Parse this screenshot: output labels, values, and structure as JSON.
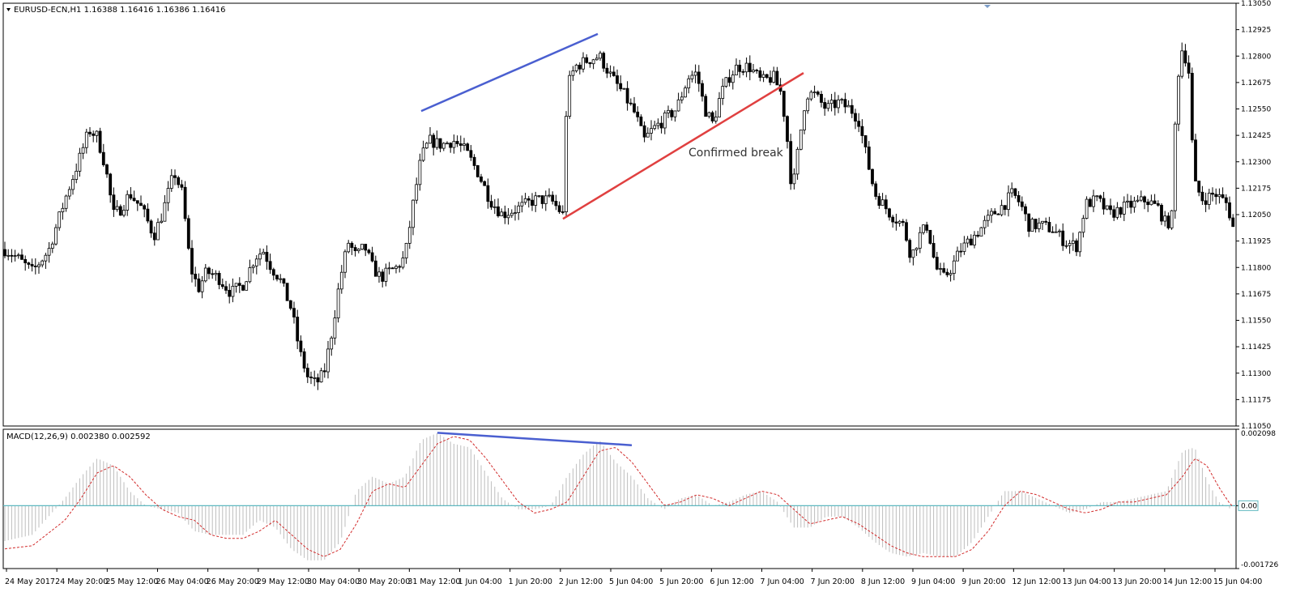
{
  "window": {
    "symbol_title": "EURUSD-ECN,H1  1.16388 1.16416 1.16386 1.16416",
    "macd_title": "MACD(12,26,9) 0.002380 0.002592"
  },
  "colors": {
    "candle": "#000000",
    "axis": "#000000",
    "grid_zero": "#5fb8c0",
    "macd_hist": "#bdbdbd",
    "macd_signal": "#d22b2b",
    "trend_blue": "#4a5fd0",
    "trend_red": "#e04040",
    "zero_box": "#5fb8c0"
  },
  "annotations": {
    "confirmed_break": "Confirmed break"
  },
  "chart_data": [
    {
      "type": "candlestick",
      "title": "EURUSD-ECN,H1",
      "ylim": [
        1.1105,
        1.1305
      ],
      "y_ticks": [
        "1.13050",
        "1.12925",
        "1.12800",
        "1.12675",
        "1.12550",
        "1.12425",
        "1.12300",
        "1.12175",
        "1.12050",
        "1.11925",
        "1.11800",
        "1.11675",
        "1.11550",
        "1.11425",
        "1.11300",
        "1.11175",
        "1.11050"
      ],
      "close_path": [
        [
          0,
          1.119
        ],
        [
          20,
          1.1185
        ],
        [
          40,
          1.1178
        ],
        [
          60,
          1.1188
        ],
        [
          80,
          1.1212
        ],
        [
          95,
          1.1228
        ],
        [
          110,
          1.1245
        ],
        [
          120,
          1.1242
        ],
        [
          130,
          1.1228
        ],
        [
          140,
          1.1205
        ],
        [
          150,
          1.1208
        ],
        [
          160,
          1.1215
        ],
        [
          175,
          1.1208
        ],
        [
          190,
          1.1195
        ],
        [
          200,
          1.1205
        ],
        [
          215,
          1.1225
        ],
        [
          225,
          1.1215
        ],
        [
          235,
          1.118
        ],
        [
          245,
          1.117
        ],
        [
          255,
          1.1178
        ],
        [
          270,
          1.1175
        ],
        [
          285,
          1.1168
        ],
        [
          300,
          1.1172
        ],
        [
          315,
          1.1185
        ],
        [
          325,
          1.1188
        ],
        [
          335,
          1.118
        ],
        [
          345,
          1.1175
        ],
        [
          360,
          1.116
        ],
        [
          370,
          1.114
        ],
        [
          380,
          1.1128
        ],
        [
          390,
          1.1125
        ],
        [
          400,
          1.113
        ],
        [
          410,
          1.115
        ],
        [
          420,
          1.1175
        ],
        [
          430,
          1.1192
        ],
        [
          440,
          1.1185
        ],
        [
          450,
          1.119
        ],
        [
          460,
          1.118
        ],
        [
          470,
          1.1175
        ],
        [
          480,
          1.1178
        ],
        [
          490,
          1.118
        ],
        [
          500,
          1.1185
        ],
        [
          510,
          1.121
        ],
        [
          520,
          1.1232
        ],
        [
          530,
          1.124
        ],
        [
          545,
          1.1238
        ],
        [
          560,
          1.124
        ],
        [
          575,
          1.1235
        ],
        [
          590,
          1.1225
        ],
        [
          605,
          1.1212
        ],
        [
          620,
          1.1205
        ],
        [
          640,
          1.1208
        ],
        [
          660,
          1.1212
        ],
        [
          680,
          1.1212
        ],
        [
          695,
          1.1205
        ],
        [
          700,
          1.1265
        ],
        [
          710,
          1.1275
        ],
        [
          725,
          1.1278
        ],
        [
          740,
          1.128
        ],
        [
          755,
          1.127
        ],
        [
          770,
          1.1262
        ],
        [
          785,
          1.1252
        ],
        [
          795,
          1.124
        ],
        [
          805,
          1.1245
        ],
        [
          820,
          1.125
        ],
        [
          835,
          1.1255
        ],
        [
          850,
          1.127
        ],
        [
          860,
          1.1272
        ],
        [
          870,
          1.1255
        ],
        [
          880,
          1.1248
        ],
        [
          890,
          1.1262
        ],
        [
          900,
          1.127
        ],
        [
          910,
          1.1275
        ],
        [
          925,
          1.1275
        ],
        [
          940,
          1.1268
        ],
        [
          955,
          1.127
        ],
        [
          965,
          1.1262
        ],
        [
          972,
          1.124
        ],
        [
          978,
          1.1215
        ],
        [
          985,
          1.1235
        ],
        [
          995,
          1.1262
        ],
        [
          1005,
          1.1262
        ],
        [
          1020,
          1.1255
        ],
        [
          1035,
          1.1258
        ],
        [
          1050,
          1.1255
        ],
        [
          1060,
          1.125
        ],
        [
          1070,
          1.1232
        ],
        [
          1080,
          1.1215
        ],
        [
          1090,
          1.121
        ],
        [
          1100,
          1.1205
        ],
        [
          1115,
          1.12
        ],
        [
          1125,
          1.1185
        ],
        [
          1135,
          1.1195
        ],
        [
          1145,
          1.12
        ],
        [
          1155,
          1.118
        ],
        [
          1165,
          1.1175
        ],
        [
          1175,
          1.118
        ],
        [
          1185,
          1.1188
        ],
        [
          1195,
          1.1192
        ],
        [
          1210,
          1.1198
        ],
        [
          1225,
          1.1205
        ],
        [
          1240,
          1.121
        ],
        [
          1250,
          1.1215
        ],
        [
          1260,
          1.121
        ],
        [
          1270,
          1.12
        ],
        [
          1285,
          1.12
        ],
        [
          1300,
          1.1198
        ],
        [
          1315,
          1.1192
        ],
        [
          1330,
          1.119
        ],
        [
          1340,
          1.121
        ],
        [
          1355,
          1.1212
        ],
        [
          1370,
          1.1205
        ],
        [
          1385,
          1.1208
        ],
        [
          1400,
          1.121
        ],
        [
          1415,
          1.1212
        ],
        [
          1430,
          1.1208
        ],
        [
          1440,
          1.12
        ],
        [
          1448,
          1.1205
        ],
        [
          1452,
          1.1265
        ],
        [
          1460,
          1.1285
        ],
        [
          1468,
          1.1272
        ],
        [
          1474,
          1.122
        ],
        [
          1485,
          1.1212
        ],
        [
          1500,
          1.1215
        ],
        [
          1515,
          1.121
        ],
        [
          1525,
          1.1195
        ]
      ],
      "x_tick_labels": [
        "24 May 2017",
        "24 May 20:00",
        "25 May 12:00",
        "26 May 04:00",
        "26 May 20:00",
        "29 May 12:00",
        "30 May 04:00",
        "30 May 20:00",
        "31 May 12:00",
        "1 Jun 04:00",
        "1 Jun 20:00",
        "2 Jun 12:00",
        "5 Jun 04:00",
        "5 Jun 20:00",
        "6 Jun 12:00",
        "7 Jun 04:00",
        "7 Jun 20:00",
        "8 Jun 12:00",
        "9 Jun 04:00",
        "9 Jun 20:00",
        "12 Jun 12:00",
        "13 Jun 04:00",
        "13 Jun 20:00",
        "14 Jun 12:00",
        "15 Jun 04:00"
      ],
      "trendlines": [
        {
          "name": "higher-high",
          "color": "#4a5fd0",
          "from": [
            520,
            1.1254
          ],
          "to": [
            738,
            1.12905
          ]
        },
        {
          "name": "support",
          "color": "#e04040",
          "from": [
            695,
            1.1203
          ],
          "to": [
            992,
            1.1272
          ]
        }
      ]
    },
    {
      "type": "macd",
      "title": "MACD(12,26,9)",
      "ylim": [
        -0.001726,
        0.002098
      ],
      "y_ticks": [
        "0.002098",
        "0.00",
        "-0.001726"
      ],
      "histogram_path": [
        [
          0,
          -0.001
        ],
        [
          40,
          -0.0008
        ],
        [
          80,
          0.0002
        ],
        [
          100,
          0.0008
        ],
        [
          120,
          0.0013
        ],
        [
          140,
          0.0011
        ],
        [
          160,
          0.0004
        ],
        [
          180,
          0.0
        ],
        [
          200,
          -0.0001
        ],
        [
          220,
          -0.0002
        ],
        [
          240,
          -0.0007
        ],
        [
          260,
          -0.0008
        ],
        [
          280,
          -0.0008
        ],
        [
          300,
          -0.0008
        ],
        [
          320,
          -0.0004
        ],
        [
          340,
          -0.0006
        ],
        [
          360,
          -0.0012
        ],
        [
          380,
          -0.0015
        ],
        [
          400,
          -0.0015
        ],
        [
          420,
          -0.001
        ],
        [
          440,
          0.0004
        ],
        [
          460,
          0.0008
        ],
        [
          480,
          0.0006
        ],
        [
          500,
          0.0008
        ],
        [
          520,
          0.0018
        ],
        [
          540,
          0.002
        ],
        [
          560,
          0.0017
        ],
        [
          580,
          0.0016
        ],
        [
          600,
          0.0009
        ],
        [
          620,
          0.0002
        ],
        [
          640,
          -0.0001
        ],
        [
          660,
          -0.0001
        ],
        [
          680,
          0.0
        ],
        [
          700,
          0.0008
        ],
        [
          720,
          0.0014
        ],
        [
          740,
          0.0018
        ],
        [
          760,
          0.0012
        ],
        [
          780,
          0.0008
        ],
        [
          800,
          0.0002
        ],
        [
          820,
          -0.0001
        ],
        [
          840,
          0.0002
        ],
        [
          860,
          0.0003
        ],
        [
          880,
          0.0
        ],
        [
          900,
          0.0001
        ],
        [
          920,
          0.0003
        ],
        [
          940,
          0.0004
        ],
        [
          960,
          0.0001
        ],
        [
          980,
          -0.0006
        ],
        [
          1000,
          -0.0006
        ],
        [
          1020,
          -0.0003
        ],
        [
          1040,
          -0.0003
        ],
        [
          1060,
          -0.0006
        ],
        [
          1080,
          -0.001
        ],
        [
          1100,
          -0.0013
        ],
        [
          1120,
          -0.0014
        ],
        [
          1140,
          -0.0013
        ],
        [
          1160,
          -0.0014
        ],
        [
          1180,
          -0.0014
        ],
        [
          1200,
          -0.001
        ],
        [
          1220,
          -0.0003
        ],
        [
          1240,
          0.0004
        ],
        [
          1260,
          0.0004
        ],
        [
          1280,
          0.0002
        ],
        [
          1300,
          0.0
        ],
        [
          1320,
          -0.0002
        ],
        [
          1340,
          -0.0001
        ],
        [
          1360,
          0.0001
        ],
        [
          1380,
          0.0001
        ],
        [
          1400,
          0.0002
        ],
        [
          1420,
          0.0003
        ],
        [
          1440,
          0.0004
        ],
        [
          1460,
          0.0015
        ],
        [
          1475,
          0.0016
        ],
        [
          1490,
          0.0007
        ],
        [
          1505,
          0.0001
        ],
        [
          1520,
          -0.0001
        ]
      ],
      "signal_path": [
        [
          0,
          -0.0012
        ],
        [
          40,
          -0.0011
        ],
        [
          80,
          -0.0004
        ],
        [
          100,
          0.0002
        ],
        [
          120,
          0.0009
        ],
        [
          140,
          0.0011
        ],
        [
          160,
          0.0008
        ],
        [
          180,
          0.0003
        ],
        [
          200,
          -0.0001
        ],
        [
          220,
          -0.0003
        ],
        [
          240,
          -0.0004
        ],
        [
          260,
          -0.0008
        ],
        [
          280,
          -0.0009
        ],
        [
          300,
          -0.0009
        ],
        [
          320,
          -0.0007
        ],
        [
          340,
          -0.0004
        ],
        [
          360,
          -0.0008
        ],
        [
          380,
          -0.0012
        ],
        [
          400,
          -0.0014
        ],
        [
          420,
          -0.0012
        ],
        [
          440,
          -0.0005
        ],
        [
          460,
          0.0004
        ],
        [
          480,
          0.0006
        ],
        [
          500,
          0.0005
        ],
        [
          520,
          0.0011
        ],
        [
          540,
          0.0017
        ],
        [
          560,
          0.0019
        ],
        [
          580,
          0.0018
        ],
        [
          600,
          0.0013
        ],
        [
          620,
          0.0007
        ],
        [
          640,
          0.0001
        ],
        [
          660,
          -0.0002
        ],
        [
          680,
          -0.0001
        ],
        [
          700,
          0.0001
        ],
        [
          720,
          0.0008
        ],
        [
          740,
          0.0015
        ],
        [
          760,
          0.0016
        ],
        [
          780,
          0.0012
        ],
        [
          800,
          0.0006
        ],
        [
          820,
          0.0
        ],
        [
          840,
          0.0001
        ],
        [
          860,
          0.0003
        ],
        [
          880,
          0.0002
        ],
        [
          900,
          0.0
        ],
        [
          920,
          0.0002
        ],
        [
          940,
          0.0004
        ],
        [
          960,
          0.0003
        ],
        [
          980,
          -0.0001
        ],
        [
          1000,
          -0.0005
        ],
        [
          1020,
          -0.0004
        ],
        [
          1040,
          -0.0003
        ],
        [
          1060,
          -0.0005
        ],
        [
          1080,
          -0.0008
        ],
        [
          1100,
          -0.0011
        ],
        [
          1120,
          -0.0013
        ],
        [
          1140,
          -0.0014
        ],
        [
          1160,
          -0.0014
        ],
        [
          1180,
          -0.0014
        ],
        [
          1200,
          -0.0012
        ],
        [
          1220,
          -0.0007
        ],
        [
          1240,
          0.0
        ],
        [
          1260,
          0.0004
        ],
        [
          1280,
          0.0003
        ],
        [
          1300,
          0.0001
        ],
        [
          1320,
          -0.0001
        ],
        [
          1340,
          -0.0002
        ],
        [
          1360,
          -0.0001
        ],
        [
          1380,
          0.0001
        ],
        [
          1400,
          0.0001
        ],
        [
          1420,
          0.0002
        ],
        [
          1440,
          0.0003
        ],
        [
          1460,
          0.0008
        ],
        [
          1475,
          0.0013
        ],
        [
          1490,
          0.0011
        ],
        [
          1505,
          0.0005
        ],
        [
          1520,
          0.0
        ]
      ],
      "trendlines": [
        {
          "name": "lower-high",
          "color": "#4a5fd0",
          "from": [
            540,
            0.002
          ],
          "to": [
            780,
            0.00166
          ]
        }
      ]
    }
  ]
}
